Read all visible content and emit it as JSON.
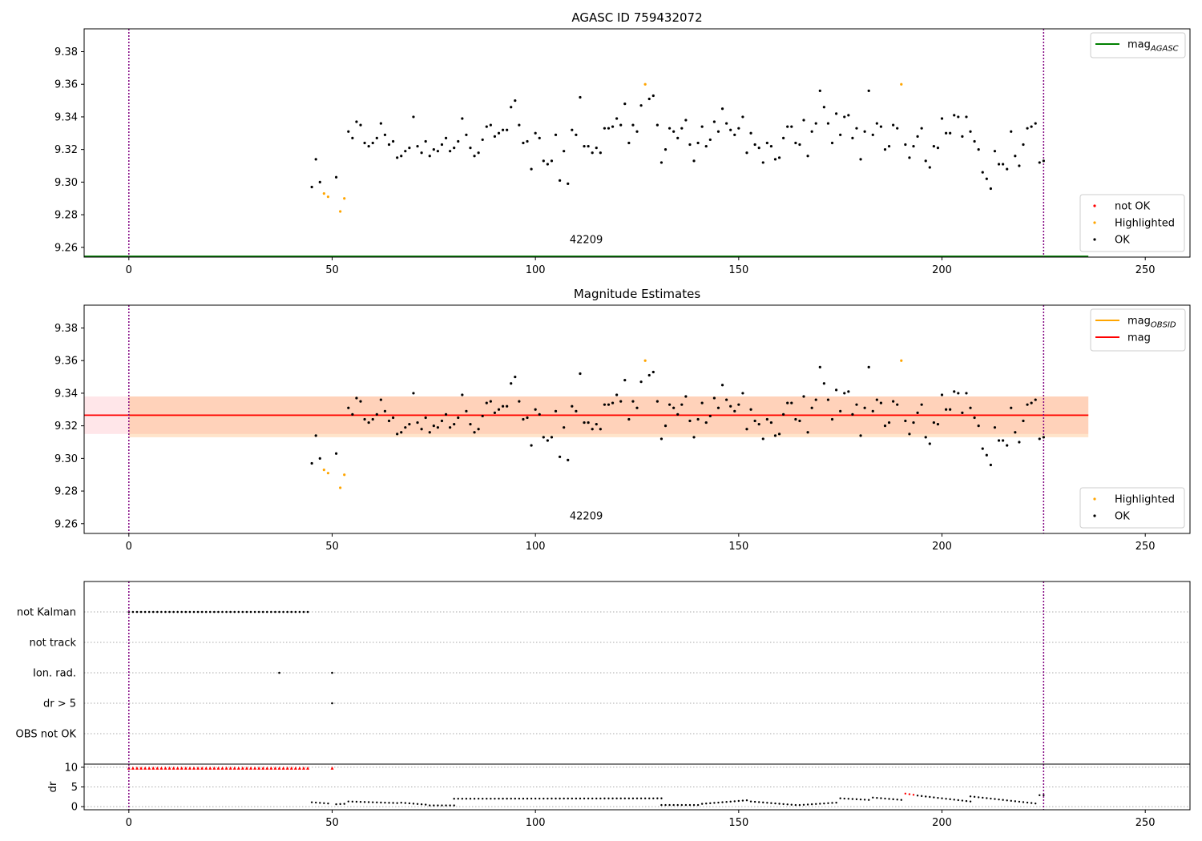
{
  "chart_data": [
    {
      "type": "scatter",
      "title": "AGASC ID 759432072",
      "xlim": [
        -11,
        261
      ],
      "ylim": [
        9.254,
        9.394
      ],
      "xticks": [
        0,
        50,
        100,
        150,
        200,
        250
      ],
      "yticks": [
        9.26,
        9.28,
        9.3,
        9.32,
        9.34,
        9.36,
        9.38
      ],
      "ytick_labels": [
        "9.26",
        "9.28",
        "9.30",
        "9.32",
        "9.34",
        "9.36",
        "9.38"
      ],
      "obsid_boundaries": [
        0,
        225
      ],
      "obsid_label": {
        "text": "42209",
        "x": 112.5,
        "y": 9.2625
      },
      "hlines": [
        {
          "name": "mag_AGASC",
          "y": 9.2545,
          "x_range": [
            -11,
            236
          ],
          "color": "#008000"
        }
      ],
      "legend_top": {
        "position": "top-right",
        "entries": [
          {
            "label": "mag",
            "sub": "AGASC",
            "color": "#008000"
          }
        ]
      },
      "legend_bottom": {
        "position": "bottom-right",
        "entries": [
          {
            "label": "not OK",
            "color": "#ff0000"
          },
          {
            "label": "Highlighted",
            "color": "#ffa500"
          },
          {
            "label": "OK",
            "color": "#000000"
          }
        ]
      },
      "series": [
        {
          "name": "OK",
          "color": "#000000",
          "points": [
            [
              45,
              9.297
            ],
            [
              46,
              9.314
            ],
            [
              47,
              9.3
            ],
            [
              51,
              9.303
            ],
            [
              54,
              9.331
            ],
            [
              55,
              9.327
            ],
            [
              56,
              9.337
            ],
            [
              57,
              9.335
            ],
            [
              58,
              9.324
            ],
            [
              59,
              9.322
            ],
            [
              60,
              9.324
            ],
            [
              61,
              9.327
            ],
            [
              62,
              9.336
            ],
            [
              63,
              9.329
            ],
            [
              64,
              9.323
            ],
            [
              65,
              9.325
            ],
            [
              66,
              9.315
            ],
            [
              67,
              9.316
            ],
            [
              68,
              9.319
            ],
            [
              69,
              9.321
            ],
            [
              70,
              9.34
            ],
            [
              71,
              9.322
            ],
            [
              72,
              9.318
            ],
            [
              73,
              9.325
            ],
            [
              74,
              9.316
            ],
            [
              75,
              9.32
            ],
            [
              76,
              9.319
            ],
            [
              77,
              9.323
            ],
            [
              78,
              9.327
            ],
            [
              79,
              9.319
            ],
            [
              80,
              9.321
            ],
            [
              81,
              9.325
            ],
            [
              82,
              9.339
            ],
            [
              83,
              9.329
            ],
            [
              84,
              9.321
            ],
            [
              85,
              9.316
            ],
            [
              86,
              9.318
            ],
            [
              87,
              9.326
            ],
            [
              88,
              9.334
            ],
            [
              89,
              9.335
            ],
            [
              90,
              9.328
            ],
            [
              91,
              9.33
            ],
            [
              92,
              9.332
            ],
            [
              93,
              9.332
            ],
            [
              94,
              9.346
            ],
            [
              95,
              9.35
            ],
            [
              96,
              9.335
            ],
            [
              97,
              9.324
            ],
            [
              98,
              9.325
            ],
            [
              99,
              9.308
            ],
            [
              100,
              9.33
            ],
            [
              101,
              9.327
            ],
            [
              102,
              9.313
            ],
            [
              103,
              9.311
            ],
            [
              104,
              9.313
            ],
            [
              105,
              9.329
            ],
            [
              106,
              9.301
            ],
            [
              107,
              9.319
            ],
            [
              108,
              9.299
            ],
            [
              109,
              9.332
            ],
            [
              110,
              9.329
            ],
            [
              111,
              9.352
            ],
            [
              112,
              9.322
            ],
            [
              113,
              9.322
            ],
            [
              114,
              9.318
            ],
            [
              115,
              9.321
            ],
            [
              116,
              9.318
            ],
            [
              117,
              9.333
            ],
            [
              118,
              9.333
            ],
            [
              119,
              9.334
            ],
            [
              120,
              9.339
            ],
            [
              121,
              9.335
            ],
            [
              122,
              9.348
            ],
            [
              123,
              9.324
            ],
            [
              124,
              9.335
            ],
            [
              125,
              9.331
            ],
            [
              126,
              9.347
            ],
            [
              128,
              9.351
            ],
            [
              129,
              9.353
            ],
            [
              130,
              9.335
            ],
            [
              131,
              9.312
            ],
            [
              132,
              9.32
            ],
            [
              133,
              9.333
            ],
            [
              134,
              9.331
            ],
            [
              135,
              9.327
            ],
            [
              136,
              9.333
            ],
            [
              137,
              9.338
            ],
            [
              138,
              9.323
            ],
            [
              139,
              9.313
            ],
            [
              140,
              9.324
            ],
            [
              141,
              9.334
            ],
            [
              142,
              9.322
            ],
            [
              143,
              9.326
            ],
            [
              144,
              9.337
            ],
            [
              145,
              9.331
            ],
            [
              146,
              9.345
            ],
            [
              147,
              9.336
            ],
            [
              148,
              9.332
            ],
            [
              149,
              9.329
            ],
            [
              150,
              9.333
            ],
            [
              151,
              9.34
            ],
            [
              152,
              9.318
            ],
            [
              153,
              9.33
            ],
            [
              154,
              9.323
            ],
            [
              155,
              9.321
            ],
            [
              156,
              9.312
            ],
            [
              157,
              9.324
            ],
            [
              158,
              9.322
            ],
            [
              159,
              9.314
            ],
            [
              160,
              9.315
            ],
            [
              161,
              9.327
            ],
            [
              162,
              9.334
            ],
            [
              163,
              9.334
            ],
            [
              164,
              9.324
            ],
            [
              165,
              9.323
            ],
            [
              166,
              9.338
            ],
            [
              167,
              9.316
            ],
            [
              168,
              9.331
            ],
            [
              169,
              9.336
            ],
            [
              170,
              9.356
            ],
            [
              171,
              9.346
            ],
            [
              172,
              9.336
            ],
            [
              173,
              9.324
            ],
            [
              174,
              9.342
            ],
            [
              175,
              9.329
            ],
            [
              176,
              9.34
            ],
            [
              177,
              9.341
            ],
            [
              178,
              9.327
            ],
            [
              179,
              9.333
            ],
            [
              180,
              9.314
            ],
            [
              181,
              9.331
            ],
            [
              182,
              9.356
            ],
            [
              183,
              9.329
            ],
            [
              184,
              9.336
            ],
            [
              185,
              9.334
            ],
            [
              186,
              9.32
            ],
            [
              187,
              9.322
            ],
            [
              188,
              9.335
            ],
            [
              189,
              9.333
            ],
            [
              191,
              9.323
            ],
            [
              192,
              9.315
            ],
            [
              193,
              9.322
            ],
            [
              194,
              9.328
            ],
            [
              195,
              9.333
            ],
            [
              196,
              9.313
            ],
            [
              197,
              9.309
            ],
            [
              198,
              9.322
            ],
            [
              199,
              9.321
            ],
            [
              200,
              9.339
            ],
            [
              201,
              9.33
            ],
            [
              202,
              9.33
            ],
            [
              203,
              9.341
            ],
            [
              204,
              9.34
            ],
            [
              205,
              9.328
            ],
            [
              206,
              9.34
            ],
            [
              207,
              9.331
            ],
            [
              208,
              9.325
            ],
            [
              209,
              9.32
            ],
            [
              210,
              9.306
            ],
            [
              211,
              9.302
            ],
            [
              212,
              9.296
            ],
            [
              213,
              9.319
            ],
            [
              214,
              9.311
            ],
            [
              215,
              9.311
            ],
            [
              216,
              9.308
            ],
            [
              217,
              9.331
            ],
            [
              218,
              9.316
            ],
            [
              219,
              9.31
            ],
            [
              220,
              9.323
            ],
            [
              221,
              9.333
            ],
            [
              222,
              9.334
            ],
            [
              223,
              9.336
            ],
            [
              224,
              9.312
            ],
            [
              225,
              9.313
            ]
          ]
        },
        {
          "name": "Highlighted",
          "color": "#ffa500",
          "points": [
            [
              48,
              9.293
            ],
            [
              49,
              9.291
            ],
            [
              52,
              9.282
            ],
            [
              53,
              9.29
            ],
            [
              127,
              9.36
            ],
            [
              190,
              9.36
            ]
          ]
        }
      ]
    },
    {
      "type": "scatter",
      "title": "Magnitude Estimates",
      "xlim": [
        -11,
        261
      ],
      "ylim": [
        9.254,
        9.394
      ],
      "xticks": [
        0,
        50,
        100,
        150,
        200,
        250
      ],
      "yticks": [
        9.26,
        9.28,
        9.3,
        9.32,
        9.34,
        9.36,
        9.38
      ],
      "ytick_labels": [
        "9.26",
        "9.28",
        "9.30",
        "9.32",
        "9.34",
        "9.36",
        "9.38"
      ],
      "obsid_boundaries": [
        0,
        225
      ],
      "obsid_label": {
        "text": "42209",
        "x": 112.5,
        "y": 9.2625
      },
      "bands": [
        {
          "name": "mag band",
          "x_range": [
            -11,
            236
          ],
          "y_range": [
            9.315,
            9.338
          ],
          "color": "#ffb6c1",
          "opacity": 0.35
        },
        {
          "name": "mag_OBSID band",
          "x_range": [
            0,
            236
          ],
          "y_range": [
            9.313,
            9.338
          ],
          "color": "#ffa54f",
          "opacity": 0.3
        }
      ],
      "hlines": [
        {
          "name": "mag_OBSID",
          "y": 9.3265,
          "x_range": [
            0,
            236
          ],
          "color": "#ffa500"
        },
        {
          "name": "mag",
          "y": 9.3265,
          "x_range": [
            -11,
            236
          ],
          "color": "#ff0000"
        }
      ],
      "legend_top": {
        "position": "top-right",
        "entries": [
          {
            "label": "mag",
            "sub": "OBSID",
            "color": "#ffa500"
          },
          {
            "label": "mag",
            "sub": "",
            "color": "#ff0000"
          }
        ]
      },
      "legend_bottom": {
        "position": "bottom-right",
        "entries": [
          {
            "label": "Highlighted",
            "color": "#ffa500"
          },
          {
            "label": "OK",
            "color": "#000000"
          }
        ]
      },
      "series_ref": "same points as AGASC panel"
    },
    {
      "type": "scatter",
      "title": "",
      "xlim": [
        -11,
        261
      ],
      "xticks": [
        0,
        50,
        100,
        150,
        200,
        250
      ],
      "flag_rows": [
        "not Kalman",
        "not track",
        "Ion. rad.",
        "dr > 5",
        "OBS not OK"
      ],
      "flags": {
        "not Kalman": {
          "x_range": [
            0,
            44
          ]
        },
        "not track": {
          "x_values": []
        },
        "Ion. rad.": {
          "x_values": [
            37,
            50
          ]
        },
        "dr > 5": {
          "x_values": [
            50
          ]
        },
        "OBS not OK": {
          "x_values": []
        }
      },
      "obsid_boundaries": [
        0,
        225
      ],
      "dr": {
        "ylabel": "dr",
        "yticks": [
          0,
          5,
          10
        ],
        "ylim": [
          -0.8,
          10.8
        ],
        "clipped_red_x": {
          "x_range": [
            0,
            44
          ],
          "extra": [
            50
          ],
          "y": 9.8
        },
        "segments": [
          {
            "x_range": [
              45,
              49
            ],
            "from": 1.1,
            "to": 0.8
          },
          {
            "x_range": [
              51,
              53
            ],
            "from": 0.6,
            "to": 0.7
          },
          {
            "x_range": [
              54,
              66
            ],
            "from": 1.3,
            "to": 0.9
          },
          {
            "x_range": [
              67,
              73
            ],
            "from": 1.0,
            "to": 0.5
          },
          {
            "x_range": [
              74,
              80
            ],
            "from": 0.3,
            "to": 0.3
          },
          {
            "x_range": [
              80,
              131
            ],
            "from": 2.0,
            "to": 2.1
          },
          {
            "x_range": [
              131,
              140
            ],
            "from": 0.4,
            "to": 0.4
          },
          {
            "x_range": [
              141,
              152
            ],
            "from": 0.7,
            "to": 1.6
          },
          {
            "x_range": [
              153,
              164
            ],
            "from": 1.3,
            "to": 0.4
          },
          {
            "x_range": [
              165,
              174
            ],
            "from": 0.4,
            "to": 1.0
          },
          {
            "x_range": [
              175,
              182
            ],
            "from": 2.1,
            "to": 1.7
          },
          {
            "x_range": [
              183,
              190
            ],
            "from": 2.3,
            "to": 1.7
          },
          {
            "x_range": [
              191,
              193
            ],
            "from": 3.3,
            "to": 3.0,
            "color": "#ff0000"
          },
          {
            "x_range": [
              194,
              207
            ],
            "from": 2.8,
            "to": 1.3
          },
          {
            "x_range": [
              207,
              223
            ],
            "from": 2.6,
            "to": 0.8
          },
          {
            "x_range": [
              224,
              225
            ],
            "from": 2.9,
            "to": 2.9
          }
        ]
      }
    }
  ]
}
